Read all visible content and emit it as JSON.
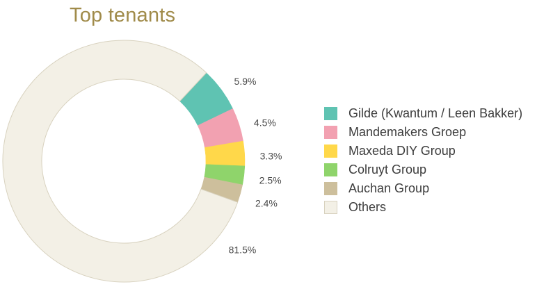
{
  "chart_data": {
    "type": "pie",
    "title": "Top tenants",
    "series": [
      {
        "name": "Gilde (Kwantum / Leen Bakker)",
        "value": 5.9,
        "label": "5.9%",
        "color": "#5fc3b2",
        "border": "#5fc3b2"
      },
      {
        "name": "Mandemakers Groep",
        "value": 4.5,
        "label": "4.5%",
        "color": "#f2a1b1",
        "border": "#f2a1b1"
      },
      {
        "name": "Maxeda DIY Group",
        "value": 3.3,
        "label": "3.3%",
        "color": "#ffd84a",
        "border": "#ffd84a"
      },
      {
        "name": "Colruyt Group",
        "value": 2.5,
        "label": "2.5%",
        "color": "#8fd46b",
        "border": "#8fd46b"
      },
      {
        "name": "Auchan Group",
        "value": 2.4,
        "label": "2.4%",
        "color": "#cdbf9c",
        "border": "#cdbf9c"
      },
      {
        "name": "Others",
        "value": 81.5,
        "label": "81.5%",
        "color": "#f3f0e6",
        "border": "#d8d2bf"
      }
    ],
    "style": "donut",
    "legend_position": "right"
  }
}
